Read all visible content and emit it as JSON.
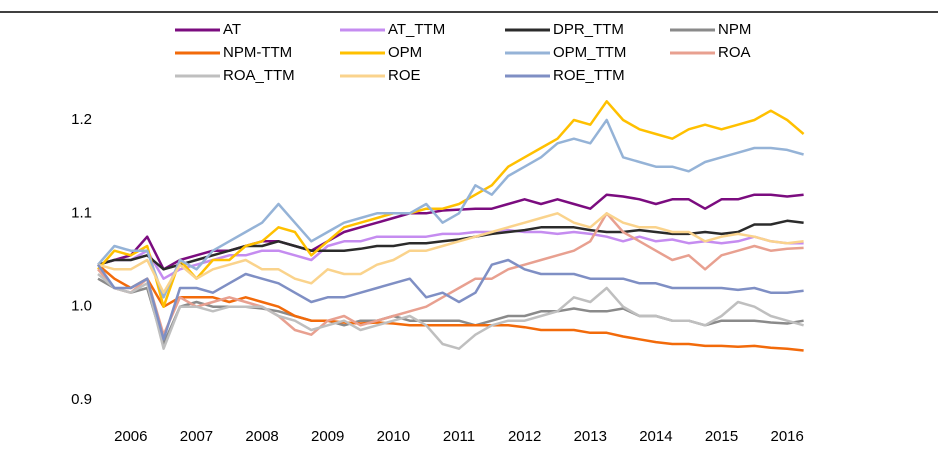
{
  "chart_data": {
    "type": "line",
    "x": [
      2006,
      2006.25,
      2006.5,
      2006.75,
      2007,
      2007.25,
      2007.5,
      2007.75,
      2008,
      2008.25,
      2008.5,
      2008.75,
      2009,
      2009.25,
      2009.5,
      2009.75,
      2010,
      2010.25,
      2010.5,
      2010.75,
      2011,
      2011.25,
      2011.5,
      2011.75,
      2012,
      2012.25,
      2012.5,
      2012.75,
      2013,
      2013.25,
      2013.5,
      2013.75,
      2014,
      2014.25,
      2014.5,
      2014.75,
      2015,
      2015.25,
      2015.5,
      2015.75,
      2016,
      2016.25,
      2016.5,
      2016.75
    ],
    "xlim": [
      2006,
      2017
    ],
    "xticks": [
      2006,
      2007,
      2008,
      2009,
      2010,
      2011,
      2012,
      2013,
      2014,
      2015,
      2016
    ],
    "ylim": [
      0.9,
      1.23
    ],
    "yticks": [
      0.9,
      {
        "value": 1,
        "label": "1.0"
      },
      1.1,
      1.2
    ],
    "series": [
      {
        "name": "AT",
        "color": "#7b0c7f",
        "values": [
          1.045,
          1.05,
          1.055,
          1.075,
          1.04,
          1.05,
          1.055,
          1.06,
          1.06,
          1.065,
          1.07,
          1.07,
          1.065,
          1.06,
          1.07,
          1.08,
          1.085,
          1.09,
          1.095,
          1.1,
          1.1,
          1.103,
          1.104,
          1.105,
          1.105,
          1.11,
          1.115,
          1.11,
          1.115,
          1.11,
          1.105,
          1.12,
          1.118,
          1.115,
          1.11,
          1.115,
          1.115,
          1.105,
          1.115,
          1.115,
          1.12,
          1.12,
          1.118,
          1.12
        ]
      },
      {
        "name": "AT_TTM",
        "color": "#c58cf0",
        "values": [
          1.045,
          1.05,
          1.05,
          1.06,
          1.03,
          1.04,
          1.045,
          1.05,
          1.055,
          1.055,
          1.06,
          1.06,
          1.055,
          1.05,
          1.065,
          1.07,
          1.07,
          1.075,
          1.075,
          1.075,
          1.075,
          1.078,
          1.078,
          1.08,
          1.08,
          1.082,
          1.08,
          1.08,
          1.078,
          1.08,
          1.078,
          1.075,
          1.07,
          1.075,
          1.07,
          1.072,
          1.068,
          1.07,
          1.068,
          1.07,
          1.075,
          1.07,
          1.068,
          1.068
        ]
      },
      {
        "name": "DPR_TTM",
        "color": "#2b2b2b",
        "values": [
          1.045,
          1.05,
          1.05,
          1.055,
          1.04,
          1.045,
          1.05,
          1.055,
          1.06,
          1.065,
          1.065,
          1.07,
          1.065,
          1.06,
          1.06,
          1.06,
          1.062,
          1.065,
          1.065,
          1.068,
          1.068,
          1.07,
          1.072,
          1.075,
          1.078,
          1.08,
          1.082,
          1.085,
          1.085,
          1.085,
          1.082,
          1.08,
          1.08,
          1.082,
          1.08,
          1.078,
          1.078,
          1.08,
          1.078,
          1.08,
          1.088,
          1.088,
          1.092,
          1.09
        ]
      },
      {
        "name": "NPM",
        "color": "#8a8a8a",
        "values": [
          1.03,
          1.02,
          1.015,
          1.02,
          0.96,
          1.0,
          1.005,
          1.0,
          1.0,
          1.0,
          0.998,
          0.995,
          0.99,
          0.985,
          0.985,
          0.98,
          0.985,
          0.985,
          0.99,
          0.985,
          0.985,
          0.985,
          0.985,
          0.98,
          0.985,
          0.99,
          0.99,
          0.995,
          0.995,
          0.998,
          0.995,
          0.995,
          0.998,
          0.99,
          0.99,
          0.985,
          0.985,
          0.98,
          0.985,
          0.985,
          0.985,
          0.983,
          0.982,
          0.985
        ]
      },
      {
        "name": "NPM-TTM",
        "color": "#f26a0a",
        "values": [
          1.045,
          1.03,
          1.02,
          1.03,
          1.0,
          1.01,
          1.01,
          1.01,
          1.005,
          1.01,
          1.005,
          1.0,
          0.99,
          0.985,
          0.985,
          0.983,
          0.982,
          0.983,
          0.982,
          0.98,
          0.98,
          0.98,
          0.98,
          0.98,
          0.98,
          0.98,
          0.978,
          0.975,
          0.975,
          0.975,
          0.972,
          0.972,
          0.968,
          0.965,
          0.962,
          0.96,
          0.96,
          0.958,
          0.958,
          0.957,
          0.958,
          0.956,
          0.955,
          0.953
        ]
      },
      {
        "name": "OPM",
        "color": "#ffc000",
        "values": [
          1.04,
          1.06,
          1.055,
          1.065,
          1.0,
          1.05,
          1.03,
          1.05,
          1.05,
          1.065,
          1.07,
          1.085,
          1.08,
          1.055,
          1.07,
          1.085,
          1.09,
          1.095,
          1.1,
          1.1,
          1.105,
          1.105,
          1.11,
          1.12,
          1.13,
          1.15,
          1.16,
          1.17,
          1.18,
          1.2,
          1.195,
          1.22,
          1.2,
          1.19,
          1.185,
          1.18,
          1.19,
          1.195,
          1.19,
          1.195,
          1.2,
          1.21,
          1.2,
          1.185
        ]
      },
      {
        "name": "OPM_TTM",
        "color": "#95b3d7",
        "values": [
          1.045,
          1.065,
          1.06,
          1.06,
          1.01,
          1.05,
          1.04,
          1.06,
          1.07,
          1.08,
          1.09,
          1.11,
          1.09,
          1.07,
          1.08,
          1.09,
          1.095,
          1.1,
          1.1,
          1.1,
          1.11,
          1.09,
          1.1,
          1.13,
          1.12,
          1.14,
          1.15,
          1.16,
          1.175,
          1.18,
          1.175,
          1.2,
          1.16,
          1.155,
          1.15,
          1.15,
          1.145,
          1.155,
          1.16,
          1.165,
          1.17,
          1.17,
          1.168,
          1.163
        ]
      },
      {
        "name": "ROA",
        "color": "#e8a090",
        "values": [
          1.04,
          1.02,
          1.015,
          1.03,
          0.97,
          1.01,
          1.0,
          1.005,
          1.01,
          1.005,
          1.0,
          0.99,
          0.975,
          0.97,
          0.985,
          0.99,
          0.98,
          0.985,
          0.99,
          0.995,
          1.0,
          1.01,
          1.02,
          1.03,
          1.03,
          1.04,
          1.045,
          1.05,
          1.055,
          1.06,
          1.07,
          1.1,
          1.08,
          1.07,
          1.06,
          1.05,
          1.055,
          1.04,
          1.055,
          1.06,
          1.065,
          1.06,
          1.062,
          1.063
        ]
      },
      {
        "name": "ROA_TTM",
        "color": "#bfbfbf",
        "values": [
          1.035,
          1.02,
          1.015,
          1.025,
          0.955,
          1.0,
          1.0,
          0.995,
          1.0,
          1.0,
          1.0,
          0.99,
          0.985,
          0.975,
          0.98,
          0.985,
          0.975,
          0.98,
          0.985,
          0.99,
          0.98,
          0.96,
          0.955,
          0.97,
          0.98,
          0.985,
          0.985,
          0.99,
          0.995,
          1.01,
          1.005,
          1.02,
          1.0,
          0.99,
          0.99,
          0.985,
          0.985,
          0.98,
          0.99,
          1.005,
          1.0,
          0.99,
          0.985,
          0.98
        ]
      },
      {
        "name": "ROE",
        "color": "#fad38c",
        "values": [
          1.045,
          1.04,
          1.04,
          1.05,
          1.015,
          1.045,
          1.03,
          1.04,
          1.045,
          1.05,
          1.04,
          1.04,
          1.03,
          1.025,
          1.04,
          1.035,
          1.035,
          1.045,
          1.05,
          1.06,
          1.06,
          1.065,
          1.07,
          1.075,
          1.08,
          1.085,
          1.09,
          1.095,
          1.1,
          1.09,
          1.085,
          1.1,
          1.09,
          1.085,
          1.085,
          1.08,
          1.08,
          1.07,
          1.075,
          1.078,
          1.075,
          1.07,
          1.068,
          1.07
        ]
      },
      {
        "name": "ROE_TTM",
        "color": "#7f8fc4",
        "values": [
          1.045,
          1.02,
          1.02,
          1.03,
          0.965,
          1.02,
          1.02,
          1.015,
          1.025,
          1.035,
          1.03,
          1.025,
          1.015,
          1.005,
          1.01,
          1.01,
          1.015,
          1.02,
          1.025,
          1.03,
          1.01,
          1.015,
          1.005,
          1.015,
          1.045,
          1.05,
          1.04,
          1.035,
          1.035,
          1.035,
          1.03,
          1.03,
          1.03,
          1.025,
          1.025,
          1.02,
          1.02,
          1.02,
          1.02,
          1.018,
          1.02,
          1.015,
          1.015,
          1.017
        ]
      }
    ]
  }
}
